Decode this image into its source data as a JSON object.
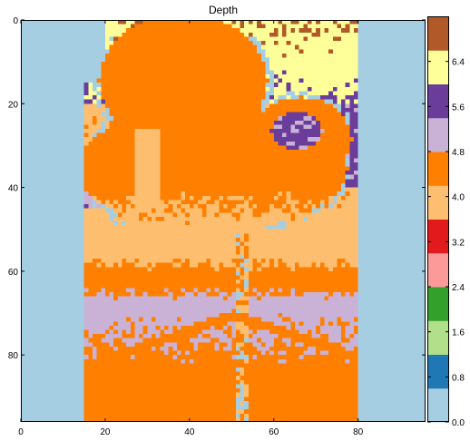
{
  "chart_data": {
    "type": "heatmap",
    "title": "Depth",
    "xlabel": "",
    "ylabel": "",
    "grid_shape": [
      96,
      96
    ],
    "x_range": [
      0,
      96
    ],
    "y_range": [
      96,
      0
    ],
    "x_ticks": [
      0,
      20,
      40,
      60,
      80
    ],
    "x_tick_labels": [
      "0",
      "20",
      "40",
      "60",
      "80"
    ],
    "y_ticks": [
      0,
      20,
      40,
      60,
      80
    ],
    "y_tick_labels": [
      "0",
      "20",
      "40",
      "60",
      "80"
    ],
    "colorbar": {
      "colormap": "Paired",
      "range": [
        0,
        7.2
      ],
      "ticks": [
        0,
        0.8,
        1.6,
        2.4,
        3.2,
        4.0,
        4.8,
        5.6,
        6.4
      ],
      "tick_labels": [
        "0.0",
        "0.8",
        "1.6",
        "2.4",
        "3.2",
        "4.0",
        "4.8",
        "5.6",
        "6.4"
      ],
      "colors": [
        "#a6cee3",
        "#1f78b4",
        "#b2df8a",
        "#33a02c",
        "#fb9a99",
        "#e31a1c",
        "#fdbf6f",
        "#ff7f00",
        "#cab2d6",
        "#6a3d9a",
        "#ffff99",
        "#b15928"
      ]
    },
    "regions": {
      "invalid_value": 0.0,
      "valid_columns": [
        15,
        80
      ],
      "chair": {
        "value": 4.45,
        "description": "seat, backrest and armrest region"
      },
      "chair_side_shadow": {
        "value": 3.75
      },
      "chair_pole": {
        "value": 4.2,
        "x": 52,
        "y": [
          50,
          96
        ]
      },
      "background_wall_top": {
        "value": 6.5
      },
      "background_purple_right": {
        "value": 5.5
      },
      "floor_gradient": {
        "start_row": 55,
        "start_value": 3.95,
        "mid_row": 67,
        "mid_value": 5.0,
        "end_row": 95,
        "end_value": 4.35
      }
    }
  }
}
